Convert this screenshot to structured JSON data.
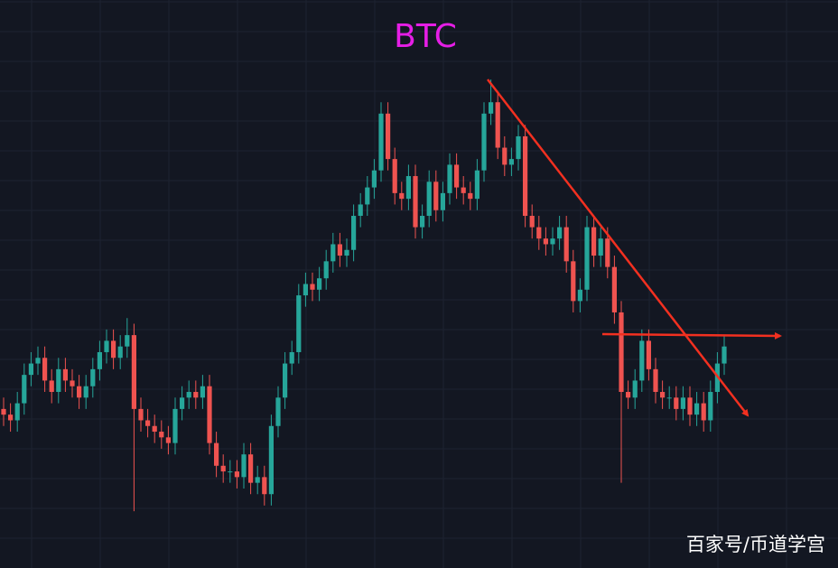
{
  "chart_data": {
    "type": "candlestick",
    "title": "BTC",
    "watermark": "百家号/币道学宫",
    "up_color": "#26a69a",
    "down_color": "#ef5350",
    "ylim": [
      0,
      100
    ],
    "open": [
      28,
      27,
      26,
      29,
      34,
      36,
      37,
      33,
      31,
      35,
      33,
      32,
      30,
      32,
      35,
      38,
      40,
      37,
      39,
      41,
      28,
      26,
      25,
      24,
      23,
      22,
      28,
      30,
      31,
      30,
      32,
      22,
      18,
      17,
      17,
      16,
      20,
      15,
      16,
      13,
      25,
      30,
      36,
      38,
      48,
      50,
      49,
      51,
      54,
      57,
      55,
      56,
      62,
      64,
      67,
      70,
      80,
      72,
      66,
      65,
      69,
      60,
      62,
      68,
      63,
      66,
      71,
      67,
      66,
      65,
      70,
      80,
      82,
      74,
      71,
      72,
      76,
      62,
      60,
      58,
      57,
      58,
      60,
      54,
      47,
      49,
      60,
      55,
      58,
      53,
      45,
      31,
      30,
      33,
      40,
      35,
      31,
      30,
      30,
      28,
      30,
      27,
      29,
      26,
      31,
      36
    ],
    "high": [
      30,
      29,
      31,
      36,
      38,
      39,
      39,
      35,
      37,
      37,
      35,
      34,
      34,
      37,
      40,
      42,
      42,
      41,
      44,
      43,
      30,
      28,
      27,
      26,
      25,
      30,
      32,
      33,
      33,
      34,
      34,
      24,
      20,
      19,
      19,
      22,
      22,
      18,
      18,
      27,
      32,
      38,
      40,
      50,
      52,
      52,
      53,
      56,
      59,
      59,
      58,
      64,
      66,
      69,
      72,
      82,
      82,
      74,
      68,
      71,
      71,
      64,
      70,
      70,
      68,
      73,
      73,
      69,
      68,
      72,
      82,
      86,
      84,
      76,
      74,
      78,
      78,
      64,
      62,
      60,
      60,
      62,
      62,
      56,
      51,
      62,
      62,
      60,
      60,
      55,
      47,
      33,
      35,
      42,
      42,
      37,
      33,
      32,
      32,
      32,
      32,
      31,
      31,
      33,
      38,
      41
    ],
    "low": [
      25,
      24,
      24,
      27,
      32,
      34,
      31,
      29,
      29,
      31,
      30,
      28,
      28,
      30,
      33,
      36,
      35,
      35,
      37,
      10,
      24,
      23,
      22,
      21,
      20,
      20,
      26,
      28,
      28,
      28,
      20,
      16,
      15,
      15,
      14,
      14,
      13,
      13,
      11,
      11,
      23,
      28,
      34,
      36,
      46,
      47,
      47,
      49,
      52,
      53,
      53,
      54,
      60,
      62,
      65,
      68,
      70,
      64,
      63,
      63,
      58,
      58,
      60,
      61,
      61,
      64,
      65,
      64,
      63,
      63,
      68,
      78,
      72,
      69,
      69,
      70,
      60,
      58,
      56,
      55,
      55,
      56,
      52,
      45,
      45,
      47,
      53,
      53,
      51,
      43,
      15,
      28,
      28,
      31,
      33,
      29,
      28,
      28,
      26,
      26,
      25,
      25,
      24,
      24,
      29,
      34
    ],
    "close": [
      27,
      26,
      29,
      34,
      36,
      37,
      33,
      31,
      35,
      33,
      32,
      30,
      32,
      35,
      38,
      40,
      37,
      39,
      41,
      28,
      26,
      25,
      24,
      23,
      22,
      28,
      30,
      31,
      30,
      32,
      22,
      18,
      17,
      17,
      16,
      20,
      15,
      16,
      13,
      25,
      30,
      36,
      38,
      48,
      50,
      49,
      51,
      54,
      57,
      55,
      56,
      62,
      64,
      67,
      70,
      80,
      72,
      66,
      65,
      69,
      60,
      62,
      68,
      63,
      66,
      71,
      67,
      66,
      65,
      70,
      80,
      82,
      74,
      71,
      72,
      76,
      62,
      60,
      58,
      57,
      58,
      60,
      54,
      47,
      49,
      60,
      55,
      58,
      53,
      45,
      31,
      30,
      33,
      40,
      35,
      31,
      30,
      30,
      28,
      30,
      27,
      29,
      26,
      31,
      36,
      39
    ]
  }
}
